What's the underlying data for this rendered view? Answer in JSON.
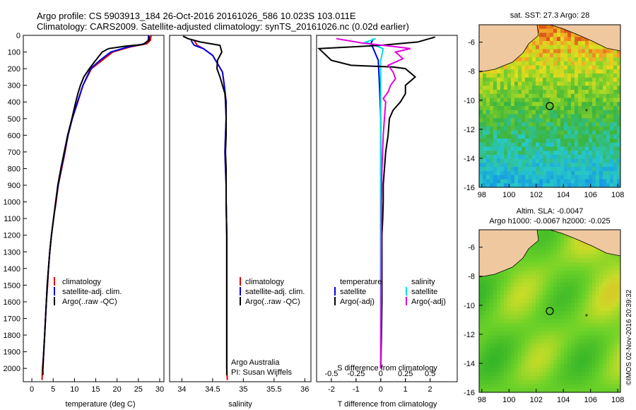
{
  "header": {
    "line1": "Argo profile: CS 5903913_184 26-Oct-2016 20161026_586 10.023S 103.011E",
    "line2": "Climatology: CARS2009. Satellite-adjusted climatology: synTS_20161026.nc (0.02d earlier)"
  },
  "colors": {
    "climatology": "#e00000",
    "satellite_adj": "#0000e0",
    "argo": "#000000",
    "salinity_sat": "#00e0e0",
    "salinity_argo": "#e000e0",
    "land": "#f0c8a0"
  },
  "chart_data": [
    {
      "id": "temperature",
      "type": "line",
      "xlabel": "temperature (deg C)",
      "xlim": [
        -2,
        31
      ],
      "xticks": [
        0,
        5,
        10,
        15,
        20,
        25,
        30
      ],
      "ylim": [
        2080,
        0
      ],
      "yticks": [
        0,
        100,
        200,
        300,
        400,
        500,
        600,
        700,
        800,
        900,
        1000,
        1100,
        1200,
        1300,
        1400,
        1500,
        1600,
        1700,
        1800,
        1900,
        2000
      ],
      "legend": [
        "climatology",
        "satellite-adj. clim.",
        "Argo(..raw -QC)"
      ],
      "series": [
        {
          "name": "climatology",
          "color": "#e00000",
          "points": [
            [
              28,
              0
            ],
            [
              27.8,
              30
            ],
            [
              27,
              50
            ],
            [
              23,
              70
            ],
            [
              19,
              100
            ],
            [
              16.5,
              150
            ],
            [
              14,
              200
            ],
            [
              12,
              300
            ],
            [
              10.8,
              400
            ],
            [
              9.5,
              500
            ],
            [
              8.5,
              600
            ],
            [
              7.8,
              700
            ],
            [
              7,
              800
            ],
            [
              6.2,
              900
            ],
            [
              5.7,
              1000
            ],
            [
              5.1,
              1100
            ],
            [
              4.6,
              1200
            ],
            [
              4.2,
              1300
            ],
            [
              3.9,
              1400
            ],
            [
              3.7,
              1500
            ],
            [
              3.4,
              1600
            ],
            [
              3.2,
              1700
            ],
            [
              3.0,
              1800
            ],
            [
              2.8,
              1900
            ],
            [
              2.5,
              2000
            ],
            [
              2.4,
              2070
            ]
          ]
        },
        {
          "name": "satellite-adj. clim.",
          "color": "#0000e0",
          "points": [
            [
              27.4,
              0
            ],
            [
              27.3,
              30
            ],
            [
              26.5,
              50
            ],
            [
              22.5,
              70
            ],
            [
              18.5,
              100
            ],
            [
              16,
              150
            ],
            [
              13.8,
              200
            ],
            [
              12,
              300
            ],
            [
              10.7,
              400
            ],
            [
              9.5,
              500
            ],
            [
              8.5,
              600
            ],
            [
              7.7,
              700
            ],
            [
              6.9,
              800
            ],
            [
              6.2,
              900
            ],
            [
              5.6,
              1000
            ],
            [
              5.1,
              1100
            ],
            [
              4.6,
              1200
            ],
            [
              4.2,
              1300
            ],
            [
              3.9,
              1400
            ],
            [
              3.6,
              1500
            ],
            [
              3.4,
              1600
            ],
            [
              3.2,
              1700
            ],
            [
              3.0,
              1800
            ],
            [
              2.8,
              1900
            ],
            [
              2.6,
              2000
            ]
          ]
        },
        {
          "name": "Argo(..raw -QC)",
          "color": "#000000",
          "points": [
            [
              27.6,
              5
            ],
            [
              27.5,
              30
            ],
            [
              26,
              55
            ],
            [
              22,
              65
            ],
            [
              18,
              80
            ],
            [
              16.5,
              100
            ],
            [
              15,
              150
            ],
            [
              13.5,
              200
            ],
            [
              12.2,
              250
            ],
            [
              11.4,
              300
            ],
            [
              10.8,
              350
            ],
            [
              10.3,
              400
            ],
            [
              9.4,
              500
            ],
            [
              8.4,
              600
            ],
            [
              7.6,
              700
            ],
            [
              6.8,
              800
            ],
            [
              6.1,
              900
            ],
            [
              5.6,
              1000
            ],
            [
              5.1,
              1100
            ],
            [
              4.6,
              1200
            ],
            [
              4.2,
              1300
            ],
            [
              3.9,
              1400
            ],
            [
              3.6,
              1500
            ],
            [
              3.4,
              1600
            ],
            [
              3.2,
              1700
            ],
            [
              3.0,
              1800
            ],
            [
              2.8,
              1900
            ],
            [
              2.6,
              2000
            ],
            [
              2.6,
              2040
            ]
          ]
        }
      ]
    },
    {
      "id": "salinity",
      "type": "line",
      "xlabel": "salinity",
      "xlim": [
        33.8,
        36.1
      ],
      "xticks": [
        34,
        34.5,
        35,
        35.5,
        36
      ],
      "xtick_labels": [
        "34",
        "34.5",
        "35",
        "35.5",
        "36"
      ],
      "ylim": [
        2080,
        0
      ],
      "legend": [
        "climatology",
        "satellite-adj. clim.",
        "Argo(..raw -QC)"
      ],
      "annotations": [
        "Argo Australia",
        "PI: Susan Wijffels"
      ],
      "series": [
        {
          "name": "climatology",
          "color": "#e00000",
          "points": [
            [
              34.2,
              30
            ],
            [
              34.25,
              60
            ],
            [
              34.35,
              80
            ],
            [
              34.5,
              120
            ],
            [
              34.58,
              170
            ],
            [
              34.66,
              220
            ],
            [
              34.69,
              300
            ],
            [
              34.72,
              400
            ],
            [
              34.72,
              500
            ],
            [
              34.71,
              600
            ],
            [
              34.7,
              700
            ],
            [
              34.71,
              800
            ],
            [
              34.72,
              900
            ],
            [
              34.72,
              1000
            ],
            [
              34.73,
              1200
            ],
            [
              34.73,
              1400
            ],
            [
              34.73,
              1600
            ],
            [
              34.73,
              1800
            ],
            [
              34.73,
              2000
            ],
            [
              34.74,
              2070
            ]
          ]
        },
        {
          "name": "satellite-adj. clim.",
          "color": "#0000e0",
          "points": [
            [
              34.15,
              30
            ],
            [
              34.2,
              60
            ],
            [
              34.35,
              80
            ],
            [
              34.5,
              120
            ],
            [
              34.58,
              170
            ],
            [
              34.66,
              220
            ],
            [
              34.69,
              300
            ],
            [
              34.72,
              400
            ],
            [
              34.72,
              500
            ],
            [
              34.71,
              600
            ],
            [
              34.7,
              700
            ],
            [
              34.71,
              800
            ],
            [
              34.72,
              900
            ],
            [
              34.72,
              1000
            ],
            [
              34.73,
              1200
            ],
            [
              34.73,
              1400
            ],
            [
              34.73,
              1600
            ],
            [
              34.73,
              1800
            ],
            [
              34.73,
              2000
            ]
          ]
        },
        {
          "name": "Argo(..raw -QC)",
          "color": "#000000",
          "points": [
            [
              34.02,
              5
            ],
            [
              34.1,
              20
            ],
            [
              34.3,
              40
            ],
            [
              34.62,
              60
            ],
            [
              34.65,
              100
            ],
            [
              34.58,
              150
            ],
            [
              34.57,
              200
            ],
            [
              34.62,
              250
            ],
            [
              34.66,
              300
            ],
            [
              34.7,
              350
            ],
            [
              34.71,
              400
            ],
            [
              34.72,
              500
            ],
            [
              34.72,
              600
            ],
            [
              34.71,
              700
            ],
            [
              34.72,
              800
            ],
            [
              34.72,
              900
            ],
            [
              34.72,
              1000
            ],
            [
              34.73,
              1200
            ],
            [
              34.73,
              1400
            ],
            [
              34.73,
              1600
            ],
            [
              34.73,
              1800
            ],
            [
              34.73,
              2000
            ],
            [
              34.73,
              2040
            ]
          ]
        }
      ]
    },
    {
      "id": "difference",
      "type": "line",
      "xlabel": "T difference from climatology",
      "xlabel_top": "S difference from climatology",
      "xlim": [
        -2.6,
        3.1
      ],
      "xticks": [
        -2,
        -1,
        0,
        1,
        2
      ],
      "xtick_labels": [
        "-2",
        "-1",
        "0",
        "1",
        "2"
      ],
      "sticks": [
        -2,
        -1,
        0,
        1,
        2
      ],
      "stick_labels": [
        "-0.5",
        "-0.25",
        "0",
        "0.25",
        "0.5"
      ],
      "ylim": [
        2080,
        0
      ],
      "legend_temperature": [
        "temperature",
        "satellite",
        "Argo(-adj)"
      ],
      "legend_salinity": [
        "salinity",
        "satellite",
        "Argo(-adj)"
      ],
      "series": [
        {
          "name": "temperature satellite",
          "color": "#0000e0",
          "points": [
            [
              -0.3,
              20
            ],
            [
              -0.4,
              50
            ],
            [
              -0.3,
              80
            ],
            [
              -0.1,
              150
            ],
            [
              -0.05,
              300
            ],
            [
              0,
              500
            ],
            [
              0,
              1000
            ],
            [
              0,
              1500
            ],
            [
              0,
              2000
            ]
          ]
        },
        {
          "name": "salinity satellite",
          "color": "#00e0e0",
          "points": [
            [
              -0.2,
              20
            ],
            [
              -0.6,
              40
            ],
            [
              0.1,
              80
            ],
            [
              0,
              150
            ],
            [
              0,
              300
            ],
            [
              0,
              500
            ],
            [
              0,
              1000
            ],
            [
              0,
              1500
            ],
            [
              0,
              2000
            ]
          ]
        },
        {
          "name": "temperature Argo(-adj)",
          "color": "#000000",
          "points": [
            [
              2.2,
              10
            ],
            [
              1.5,
              40
            ],
            [
              0,
              60
            ],
            [
              -2.5,
              80
            ],
            [
              -2.0,
              150
            ],
            [
              -1.2,
              180
            ],
            [
              0.5,
              190
            ],
            [
              1.0,
              200
            ],
            [
              1.4,
              250
            ],
            [
              1.0,
              300
            ],
            [
              1.0,
              350
            ],
            [
              0.8,
              400
            ],
            [
              0.5,
              450
            ],
            [
              0.35,
              500
            ],
            [
              0.3,
              600
            ],
            [
              0.2,
              700
            ],
            [
              0.15,
              800
            ],
            [
              0.1,
              900
            ],
            [
              0.1,
              1000
            ],
            [
              0.08,
              1100
            ],
            [
              0.05,
              1200
            ],
            [
              0.05,
              1400
            ],
            [
              0.05,
              1600
            ],
            [
              0.03,
              1800
            ],
            [
              0.0,
              2000
            ]
          ]
        },
        {
          "name": "salinity Argo(-adj)",
          "color": "#e000e0",
          "points": [
            [
              -1.8,
              20
            ],
            [
              -0.8,
              45
            ],
            [
              0.7,
              70
            ],
            [
              1.2,
              80
            ],
            [
              0.6,
              100
            ],
            [
              0.9,
              140
            ],
            [
              0.3,
              180
            ],
            [
              0.5,
              220
            ],
            [
              0.6,
              260
            ],
            [
              0.4,
              300
            ],
            [
              0.3,
              340
            ],
            [
              0.1,
              380
            ],
            [
              0.2,
              400
            ],
            [
              0.15,
              500
            ],
            [
              0.1,
              600
            ],
            [
              0.05,
              800
            ],
            [
              0.03,
              1000
            ],
            [
              0.02,
              1500
            ],
            [
              0.0,
              2000
            ]
          ]
        }
      ]
    },
    {
      "id": "map_sst",
      "type": "heatmap",
      "title": "sat. SST: 27.3  Argo: 28",
      "xlim": [
        97.8,
        108.2
      ],
      "ylim": [
        -16,
        -4.8
      ],
      "xticks": [
        98,
        100,
        102,
        104,
        106,
        108
      ],
      "yticks": [
        -6,
        -8,
        -10,
        -12,
        -14,
        -16
      ],
      "argo_position": [
        103.0,
        -10.0
      ]
    },
    {
      "id": "map_sla",
      "type": "heatmap",
      "title": "Altim. SLA: -0.0047",
      "subtitle": "Argo h1000: -0.0067 h2000: -0.025",
      "xlim": [
        97.8,
        108.2
      ],
      "ylim": [
        -16,
        -4.8
      ],
      "xticks": [
        98,
        100,
        102,
        104,
        106,
        108
      ],
      "yticks": [
        -6,
        -8,
        -10,
        -12,
        -14,
        -16
      ],
      "argo_position": [
        103.0,
        -10.0
      ]
    }
  ],
  "credit": "©IMOS 02-Nov-2016 20:39:32"
}
